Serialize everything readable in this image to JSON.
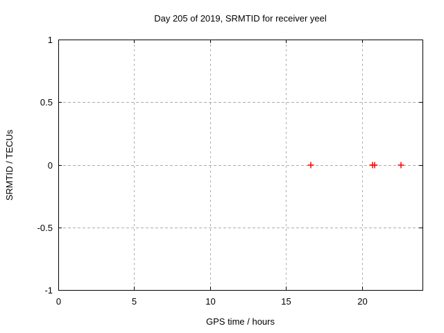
{
  "chart_data": {
    "type": "scatter",
    "title": "Day 205 of 2019, SRMTID for receiver yeel",
    "xlabel": "GPS time / hours",
    "ylabel": "SRMTID / TECUs",
    "xlim": [
      0,
      24
    ],
    "ylim": [
      -1,
      1
    ],
    "xticks": [
      0,
      5,
      10,
      15,
      20
    ],
    "xtick_labels": [
      "0",
      "5",
      "10",
      "15",
      "20"
    ],
    "yticks": [
      -1,
      -0.5,
      0,
      0.5,
      1
    ],
    "ytick_labels": [
      "-1",
      "-0.5",
      "0",
      "0.5",
      "1"
    ],
    "grid": true,
    "legend_position": "none",
    "series": [
      {
        "name": "SRMTID",
        "marker": "plus",
        "color": "#ff0000",
        "points": [
          {
            "x": 16.66,
            "y": 0.0
          },
          {
            "x": 20.7,
            "y": 0.0
          },
          {
            "x": 20.84,
            "y": 0.0
          },
          {
            "x": 22.57,
            "y": 0.0
          }
        ]
      }
    ],
    "colors": {
      "background": "#ffffff",
      "axis": "#000000",
      "grid": "#aaaaaa",
      "text": "#000000"
    }
  }
}
